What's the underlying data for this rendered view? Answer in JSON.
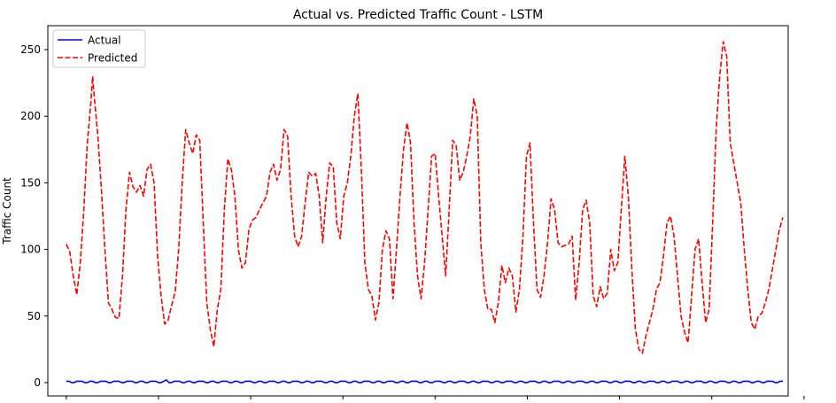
{
  "chart_data": {
    "type": "line",
    "title": "Actual vs. Predicted Traffic Count - LSTM",
    "xlabel": "",
    "ylabel": "Traffic Count",
    "ylim": [
      -10,
      268
    ],
    "yticks": [
      0,
      50,
      100,
      150,
      200,
      250
    ],
    "xlim": [
      -7,
      274
    ],
    "xticks": [
      0,
      35,
      70,
      105,
      140,
      175,
      210,
      245,
      280
    ],
    "x_tick_labels_visible": false,
    "legend": "upper-left",
    "grid": false,
    "series": [
      {
        "name": "Actual",
        "color": "#0000ff",
        "style": "solid",
        "values": [
          1,
          1,
          0,
          0,
          1,
          1,
          1,
          0,
          0,
          1,
          1,
          0,
          0,
          1,
          1,
          1,
          0,
          0,
          1,
          1,
          1,
          0,
          0,
          1,
          1,
          1,
          0,
          0,
          1,
          1,
          0,
          0,
          1,
          1,
          1,
          0,
          0,
          1,
          2,
          0,
          0,
          1,
          1,
          1,
          0,
          0,
          1,
          1,
          0,
          0,
          1,
          1,
          1,
          0,
          0,
          1,
          1,
          0,
          0,
          1,
          1,
          1,
          0,
          0,
          1,
          1,
          0,
          0,
          1,
          1,
          1,
          0,
          0,
          1,
          1,
          0,
          0,
          1,
          1,
          1,
          0,
          0,
          1,
          1,
          0,
          0,
          1,
          1,
          1,
          0,
          0,
          1,
          1,
          0,
          0,
          1,
          1,
          1,
          0,
          0,
          1,
          1,
          0,
          0,
          1,
          1,
          1,
          0,
          0,
          1,
          1,
          0,
          0,
          1,
          1,
          1,
          0,
          0,
          1,
          1,
          0,
          0,
          1,
          1,
          1,
          0,
          0,
          1,
          1,
          0,
          0,
          1,
          1,
          1,
          0,
          0,
          1,
          1,
          0,
          0,
          1,
          1,
          1,
          0,
          0,
          1,
          1,
          0,
          0,
          1,
          1,
          1,
          0,
          0,
          1,
          1,
          0,
          0,
          1,
          1,
          1,
          0,
          0,
          1,
          1,
          0,
          0,
          1,
          1,
          1,
          0,
          0,
          1,
          1,
          0,
          0,
          1,
          1,
          1,
          0,
          0,
          1,
          1,
          0,
          0,
          1,
          1,
          1,
          0,
          0,
          1,
          1,
          0,
          0,
          1,
          1,
          1,
          0,
          0,
          1,
          1,
          0,
          0,
          1,
          1,
          1,
          0,
          0,
          1,
          1,
          0,
          0,
          1,
          1,
          1,
          0,
          0,
          1,
          1,
          0,
          0,
          1,
          1,
          1,
          0,
          0,
          1,
          1,
          0,
          0,
          1,
          1,
          1,
          0,
          0,
          1,
          1,
          0,
          0,
          1,
          1,
          1,
          0,
          0,
          1,
          1,
          0,
          0,
          1,
          1,
          1,
          0,
          0,
          1,
          1,
          0,
          0,
          1,
          1,
          1,
          0,
          0,
          1,
          1,
          0,
          0,
          1,
          1,
          1,
          0,
          0,
          1,
          1
        ]
      },
      {
        "name": "Predicted",
        "color": "#ff0000",
        "style": "dashed",
        "keypoints": [
          [
            0,
            104
          ],
          [
            1,
            98
          ],
          [
            2,
            80
          ],
          [
            3,
            66
          ],
          [
            4,
            90
          ],
          [
            5,
            130
          ],
          [
            6,
            180
          ],
          [
            7,
            210
          ],
          [
            7.5,
            230
          ],
          [
            8,
            214
          ],
          [
            9,
            185
          ],
          [
            10,
            145
          ],
          [
            11,
            100
          ],
          [
            12,
            60
          ],
          [
            13,
            55
          ],
          [
            14,
            49
          ],
          [
            15,
            48
          ],
          [
            16,
            80
          ],
          [
            17,
            130
          ],
          [
            18,
            158
          ],
          [
            19,
            147
          ],
          [
            20,
            143
          ],
          [
            21,
            148
          ],
          [
            22,
            140
          ],
          [
            23,
            160
          ],
          [
            24,
            164
          ],
          [
            25,
            150
          ],
          [
            26,
            95
          ],
          [
            27,
            65
          ],
          [
            28,
            44
          ],
          [
            29,
            47
          ],
          [
            30,
            58
          ],
          [
            31,
            68
          ],
          [
            32,
            100
          ],
          [
            33,
            150
          ],
          [
            34,
            190
          ],
          [
            35,
            180
          ],
          [
            36,
            172
          ],
          [
            37,
            186
          ],
          [
            38,
            182
          ],
          [
            39,
            120
          ],
          [
            40,
            60
          ],
          [
            41,
            40
          ],
          [
            42,
            27
          ],
          [
            43,
            55
          ],
          [
            44,
            70
          ],
          [
            45,
            130
          ],
          [
            46,
            168
          ],
          [
            47,
            160
          ],
          [
            48,
            140
          ],
          [
            49,
            100
          ],
          [
            50,
            86
          ],
          [
            51,
            90
          ],
          [
            52,
            115
          ],
          [
            53,
            122
          ],
          [
            54,
            124
          ],
          [
            55,
            130
          ],
          [
            56,
            135
          ],
          [
            57,
            140
          ],
          [
            58,
            158
          ],
          [
            59,
            164
          ],
          [
            60,
            152
          ],
          [
            61,
            160
          ],
          [
            62,
            190
          ],
          [
            63,
            185
          ],
          [
            64,
            140
          ],
          [
            65,
            110
          ],
          [
            66,
            102
          ],
          [
            67,
            110
          ],
          [
            68,
            135
          ],
          [
            69,
            158
          ],
          [
            70,
            155
          ],
          [
            71,
            157
          ],
          [
            72,
            140
          ],
          [
            73,
            105
          ],
          [
            74,
            140
          ],
          [
            75,
            165
          ],
          [
            76,
            162
          ],
          [
            77,
            120
          ],
          [
            78,
            108
          ],
          [
            79,
            140
          ],
          [
            80,
            150
          ],
          [
            81,
            170
          ],
          [
            82,
            200
          ],
          [
            83,
            217
          ],
          [
            84,
            160
          ],
          [
            85,
            90
          ],
          [
            86,
            70
          ],
          [
            87,
            65
          ],
          [
            88,
            47
          ],
          [
            89,
            60
          ],
          [
            90,
            100
          ],
          [
            91,
            114
          ],
          [
            92,
            108
          ],
          [
            93,
            63
          ],
          [
            94,
            100
          ],
          [
            95,
            140
          ],
          [
            96,
            175
          ],
          [
            97,
            195
          ],
          [
            98,
            180
          ],
          [
            99,
            120
          ],
          [
            100,
            80
          ],
          [
            101,
            63
          ],
          [
            102,
            90
          ],
          [
            103,
            130
          ],
          [
            104,
            170
          ],
          [
            105,
            172
          ],
          [
            106,
            140
          ],
          [
            107,
            110
          ],
          [
            108,
            80
          ],
          [
            109,
            130
          ],
          [
            110,
            182
          ],
          [
            111,
            178
          ],
          [
            112,
            152
          ],
          [
            113,
            158
          ],
          [
            114,
            170
          ],
          [
            115,
            185
          ],
          [
            116,
            213
          ],
          [
            117,
            200
          ],
          [
            118,
            105
          ],
          [
            119,
            70
          ],
          [
            120,
            55
          ],
          [
            121,
            55
          ],
          [
            122,
            45
          ],
          [
            123,
            60
          ],
          [
            124,
            88
          ],
          [
            125,
            75
          ],
          [
            126,
            86
          ],
          [
            127,
            80
          ],
          [
            128,
            53
          ],
          [
            129,
            70
          ],
          [
            130,
            110
          ],
          [
            131,
            170
          ],
          [
            132,
            180
          ],
          [
            133,
            120
          ],
          [
            134,
            70
          ],
          [
            135,
            64
          ],
          [
            136,
            80
          ],
          [
            137,
            105
          ],
          [
            138,
            138
          ],
          [
            139,
            130
          ],
          [
            140,
            105
          ],
          [
            141,
            102
          ],
          [
            142,
            103
          ],
          [
            143,
            104
          ],
          [
            144,
            110
          ],
          [
            145,
            62
          ],
          [
            146,
            90
          ],
          [
            147,
            130
          ],
          [
            148,
            137
          ],
          [
            149,
            120
          ],
          [
            150,
            65
          ],
          [
            151,
            57
          ],
          [
            152,
            72
          ],
          [
            153,
            63
          ],
          [
            154,
            67
          ],
          [
            155,
            100
          ],
          [
            156,
            84
          ],
          [
            157,
            90
          ],
          [
            158,
            130
          ],
          [
            159,
            170
          ],
          [
            160,
            140
          ],
          [
            161,
            85
          ],
          [
            162,
            40
          ],
          [
            163,
            25
          ],
          [
            164,
            22
          ],
          [
            165,
            35
          ],
          [
            166,
            45
          ],
          [
            167,
            55
          ],
          [
            168,
            70
          ],
          [
            169,
            75
          ],
          [
            170,
            95
          ],
          [
            171,
            120
          ],
          [
            172,
            125
          ],
          [
            173,
            110
          ],
          [
            174,
            80
          ],
          [
            175,
            50
          ],
          [
            176,
            38
          ],
          [
            177,
            30
          ],
          [
            178,
            65
          ],
          [
            179,
            100
          ],
          [
            180,
            108
          ],
          [
            181,
            75
          ],
          [
            182,
            45
          ],
          [
            183,
            55
          ],
          [
            184,
            120
          ],
          [
            185,
            190
          ],
          [
            186,
            230
          ],
          [
            187,
            256
          ],
          [
            188,
            245
          ],
          [
            189,
            180
          ],
          [
            190,
            165
          ],
          [
            191,
            150
          ],
          [
            192,
            135
          ],
          [
            193,
            100
          ],
          [
            194,
            70
          ],
          [
            195,
            45
          ],
          [
            196,
            40
          ],
          [
            197,
            50
          ],
          [
            198,
            52
          ],
          [
            199,
            60
          ],
          [
            200,
            70
          ],
          [
            201,
            85
          ],
          [
            202,
            100
          ],
          [
            203,
            115
          ],
          [
            204,
            124
          ]
        ]
      }
    ]
  }
}
